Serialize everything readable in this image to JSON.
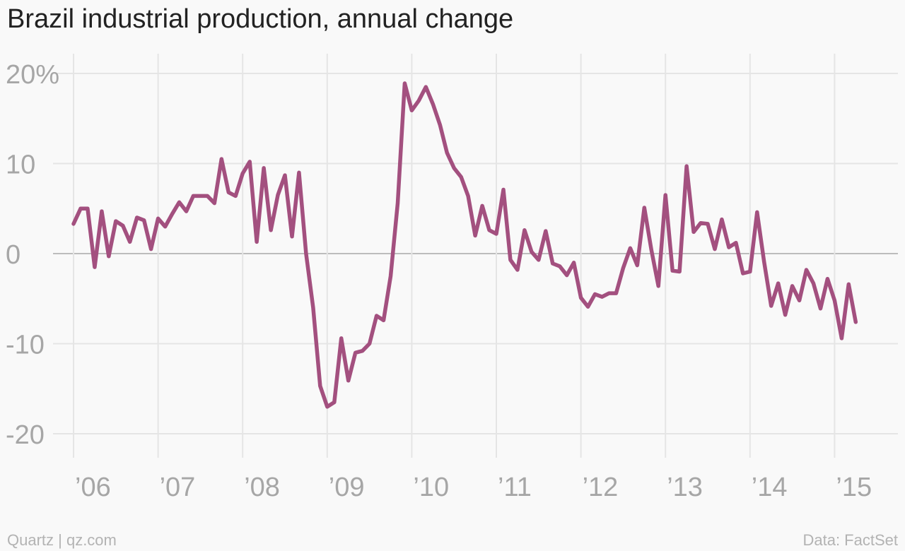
{
  "title": "Brazil industrial production, annual change",
  "footer": {
    "left": "Quartz | qz.com",
    "right": "Data: FactSet"
  },
  "colors": {
    "line": "#a3507f",
    "grid": "#e5e5e5",
    "zero": "#999999",
    "tick": "#a6a6a6"
  },
  "chart_data": {
    "type": "line",
    "title": "Brazil industrial production, annual change",
    "xlabel": "",
    "ylabel": "",
    "ylim": [
      -20,
      20
    ],
    "xlim": [
      2006.0,
      2015.25
    ],
    "y_ticks": [
      {
        "value": 20,
        "label": "20%"
      },
      {
        "value": 10,
        "label": "10"
      },
      {
        "value": 0,
        "label": "0"
      },
      {
        "value": -10,
        "label": "-10"
      },
      {
        "value": -20,
        "label": "-20"
      }
    ],
    "x_ticks": [
      {
        "value": 2006,
        "label": "’06"
      },
      {
        "value": 2007,
        "label": "’07"
      },
      {
        "value": 2008,
        "label": "’08"
      },
      {
        "value": 2009,
        "label": "’09"
      },
      {
        "value": 2010,
        "label": "’10"
      },
      {
        "value": 2011,
        "label": "’11"
      },
      {
        "value": 2012,
        "label": "’12"
      },
      {
        "value": 2013,
        "label": "’13"
      },
      {
        "value": 2014,
        "label": "’14"
      },
      {
        "value": 2015,
        "label": "’15"
      }
    ],
    "grid": true,
    "series": [
      {
        "start": "2006-01",
        "frequency": "monthly",
        "values": [
          3.3,
          5.0,
          5.0,
          -1.5,
          4.7,
          -0.3,
          3.6,
          3.1,
          1.3,
          4.0,
          3.7,
          0.5,
          3.9,
          3.0,
          4.4,
          5.7,
          4.7,
          6.4,
          6.4,
          6.4,
          5.6,
          10.5,
          6.8,
          6.4,
          8.9,
          10.2,
          1.3,
          9.5,
          2.6,
          6.5,
          8.7,
          1.9,
          9.0,
          0.0,
          -6.0,
          -14.7,
          -17.0,
          -16.5,
          -9.4,
          -14.1,
          -11.0,
          -10.8,
          -10.0,
          -6.9,
          -7.4,
          -2.5,
          5.6,
          18.9,
          15.9,
          17.0,
          18.5,
          16.6,
          14.3,
          11.2,
          9.5,
          8.5,
          6.4,
          2.0,
          5.3,
          2.6,
          2.2,
          7.1,
          -0.7,
          -1.8,
          2.6,
          0.2,
          -0.7,
          2.5,
          -1.1,
          -1.4,
          -2.4,
          -1.0,
          -4.9,
          -5.9,
          -4.5,
          -4.8,
          -4.4,
          -4.4,
          -1.6,
          0.6,
          -1.3,
          5.1,
          0.4,
          -3.6,
          6.5,
          -1.9,
          -2.0,
          9.7,
          2.4,
          3.4,
          3.3,
          0.5,
          3.8,
          0.7,
          1.2,
          -2.2,
          -2.0,
          4.6,
          -0.9,
          -5.8,
          -3.3,
          -6.8,
          -3.6,
          -5.2,
          -1.8,
          -3.3,
          -6.1,
          -2.8,
          -5.2,
          -9.4,
          -3.4,
          -7.6
        ]
      }
    ]
  }
}
